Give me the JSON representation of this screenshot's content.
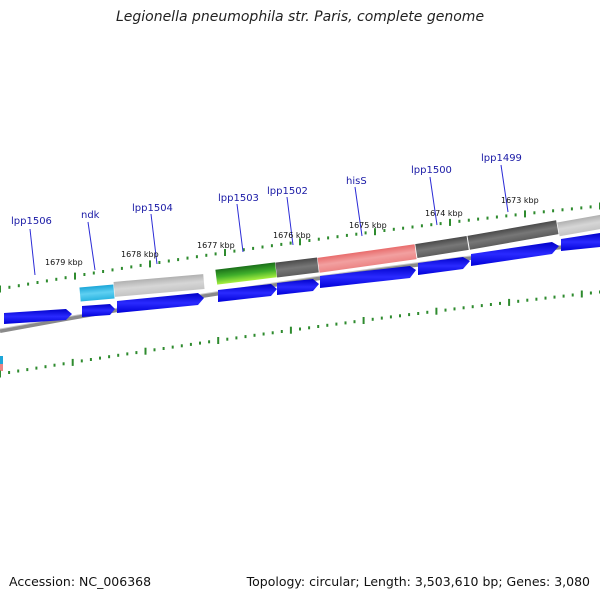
{
  "title": "Legionella pneumophila str. Paris, complete genome",
  "accession": "Accession: NC_006368",
  "stats": "Topology: circular; Length: 3,503,610 bp; Genes: 3,080",
  "colors": {
    "strand_arrow": "#0a0af0",
    "backbone": "#8a8a8a",
    "tick": "#2e8b2e",
    "label_line": "#2b2bd6",
    "gene_label": "#1a1aa6"
  },
  "gene_labels": [
    {
      "name": "lpp1506"
    },
    {
      "name": "ndk"
    },
    {
      "name": "lpp1504"
    },
    {
      "name": "lpp1503"
    },
    {
      "name": "lpp1502"
    },
    {
      "name": "hisS"
    },
    {
      "name": "lpp1500"
    },
    {
      "name": "lpp1499"
    }
  ],
  "position_labels": [
    {
      "text": "1679 kbp"
    },
    {
      "text": "1678 kbp"
    },
    {
      "text": "1677 kbp"
    },
    {
      "text": "1676 kbp"
    },
    {
      "text": "1675 kbp"
    },
    {
      "text": "1674 kbp"
    },
    {
      "text": "1673 kbp"
    }
  ]
}
